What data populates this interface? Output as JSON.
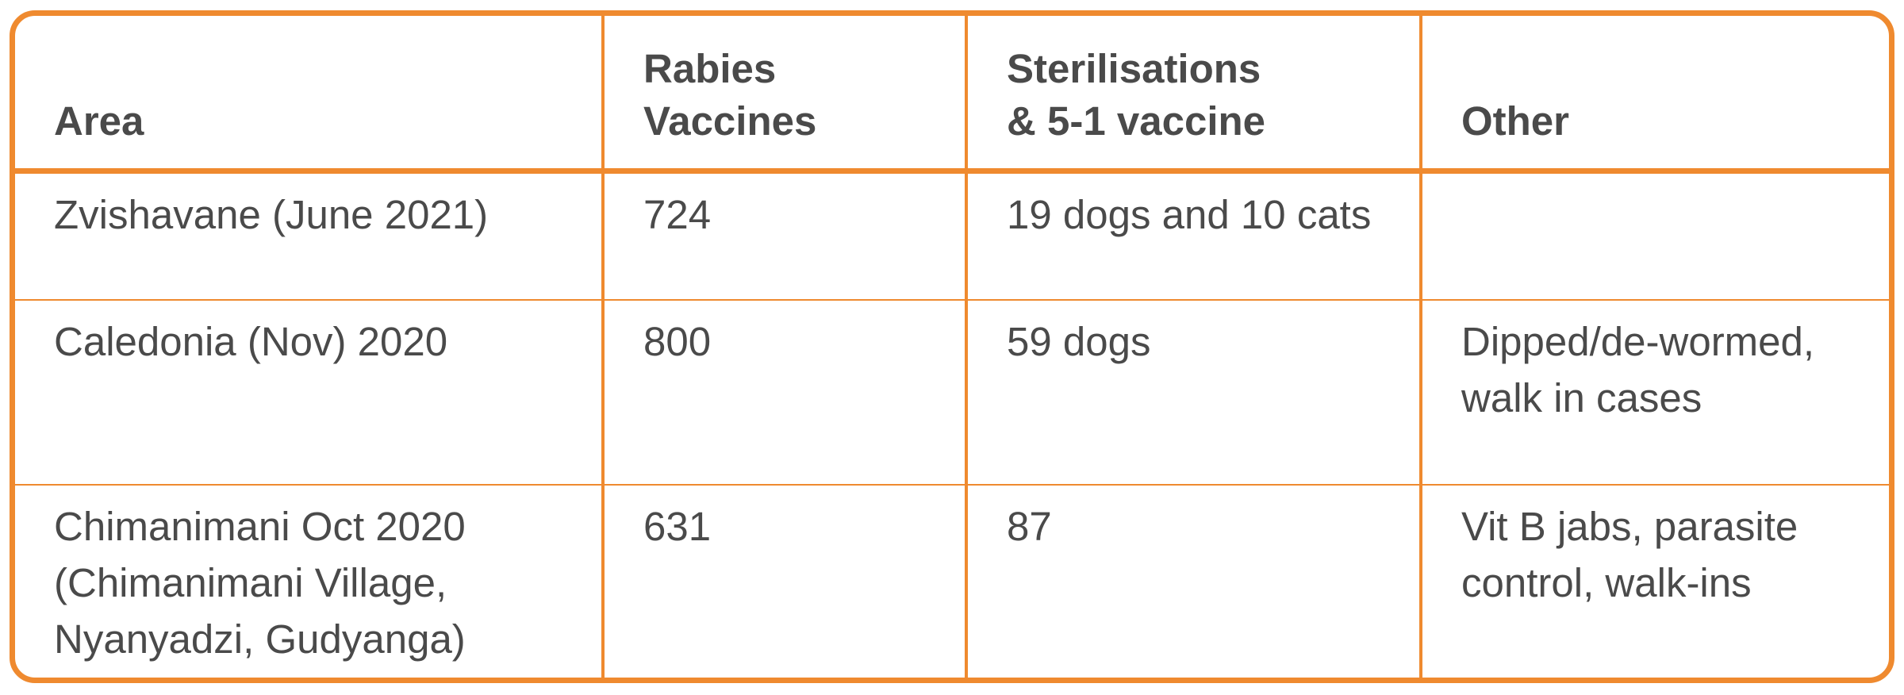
{
  "colors": {
    "border": "#ef8a2f",
    "text": "#4a4a4a",
    "background": "#ffffff"
  },
  "table": {
    "headers": {
      "area": "Area",
      "rabies_line1": "Rabies",
      "rabies_line2": "Vaccines",
      "sterilisations_line1": "Sterilisations",
      "sterilisations_line2": "& 5-1 vaccine",
      "other": "Other"
    },
    "rows": [
      {
        "area_lines": [
          "Zvishavane (June 2021)"
        ],
        "rabies": "724",
        "sterilisations": "19 dogs and 10 cats",
        "other_lines": []
      },
      {
        "area_lines": [
          "Caledonia (Nov) 2020"
        ],
        "rabies": "800",
        "sterilisations": "59 dogs",
        "other_lines": [
          "Dipped/de-wormed,",
          "walk in cases"
        ]
      },
      {
        "area_lines": [
          "Chimanimani Oct 2020",
          "(Chimanimani Village,",
          "Nyanyadzi, Gudyanga)"
        ],
        "rabies": "631",
        "sterilisations": "87",
        "other_lines": [
          "Vit B jabs, parasite",
          "control, walk-ins"
        ]
      }
    ]
  }
}
